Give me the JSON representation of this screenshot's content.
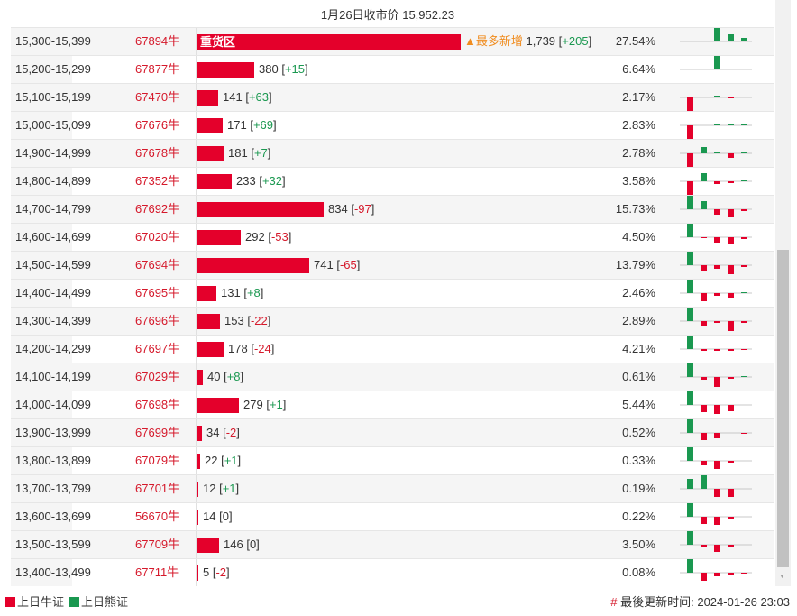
{
  "title": "1月26日收市价 15,952.23",
  "hot_label": "重货区",
  "hot_tag": "▲最多新增",
  "colors": {
    "bull": "#e4002b",
    "bear": "#1a9850",
    "hot": "#f08c1f"
  },
  "max_count": 1739,
  "rows": [
    {
      "range": "15,300-15,399",
      "code": "67894牛",
      "count": "1,739",
      "n": 1739,
      "change": "+205",
      "pct": "27.54%",
      "mini": [
        0,
        0,
        15,
        8,
        4
      ]
    },
    {
      "range": "15,200-15,299",
      "code": "67877牛",
      "count": "380",
      "n": 380,
      "change": "+15",
      "pct": "6.64%",
      "mini": [
        0,
        0,
        15,
        1,
        1
      ]
    },
    {
      "range": "15,100-15,199",
      "code": "67470牛",
      "count": "141",
      "n": 141,
      "change": "+63",
      "pct": "2.17%",
      "mini": [
        -15,
        0,
        2,
        -1,
        1
      ]
    },
    {
      "range": "15,000-15,099",
      "code": "67676牛",
      "count": "171",
      "n": 171,
      "change": "+69",
      "pct": "2.83%",
      "mini": [
        -15,
        0,
        1,
        1,
        1
      ]
    },
    {
      "range": "14,900-14,999",
      "code": "67678牛",
      "count": "181",
      "n": 181,
      "change": "+7",
      "pct": "2.78%",
      "mini": [
        -15,
        7,
        1,
        -5,
        1
      ]
    },
    {
      "range": "14,800-14,899",
      "code": "67352牛",
      "count": "233",
      "n": 233,
      "change": "+32",
      "pct": "3.58%",
      "mini": [
        -15,
        9,
        -3,
        -2,
        1
      ]
    },
    {
      "range": "14,700-14,799",
      "code": "67692牛",
      "count": "834",
      "n": 834,
      "change": "-97",
      "pct": "15.73%",
      "mini": [
        15,
        9,
        -6,
        -9,
        -2
      ]
    },
    {
      "range": "14,600-14,699",
      "code": "67020牛",
      "count": "292",
      "n": 292,
      "change": "-53",
      "pct": "4.50%",
      "mini": [
        15,
        -1,
        -6,
        -7,
        -2
      ]
    },
    {
      "range": "14,500-14,599",
      "code": "67694牛",
      "count": "741",
      "n": 741,
      "change": "-65",
      "pct": "13.79%",
      "mini": [
        15,
        -6,
        -4,
        -10,
        -2
      ]
    },
    {
      "range": "14,400-14,499",
      "code": "67695牛",
      "count": "131",
      "n": 131,
      "change": "+8",
      "pct": "2.46%",
      "mini": [
        15,
        -9,
        -3,
        -5,
        1
      ]
    },
    {
      "range": "14,300-14,399",
      "code": "67696牛",
      "count": "153",
      "n": 153,
      "change": "-22",
      "pct": "2.89%",
      "mini": [
        15,
        -6,
        -2,
        -11,
        -2
      ]
    },
    {
      "range": "14,200-14,299",
      "code": "67697牛",
      "count": "178",
      "n": 178,
      "change": "-24",
      "pct": "4.21%",
      "mini": [
        15,
        -2,
        -2,
        -2,
        -1
      ]
    },
    {
      "range": "14,100-14,199",
      "code": "67029牛",
      "count": "40",
      "n": 40,
      "change": "+8",
      "pct": "0.61%",
      "mini": [
        15,
        -3,
        -11,
        -2,
        1
      ]
    },
    {
      "range": "14,000-14,099",
      "code": "67698牛",
      "count": "279",
      "n": 279,
      "change": "+1",
      "pct": "5.44%",
      "mini": [
        15,
        -8,
        -10,
        -7,
        0
      ]
    },
    {
      "range": "13,900-13,999",
      "code": "67699牛",
      "count": "34",
      "n": 34,
      "change": "-2",
      "pct": "0.52%",
      "mini": [
        15,
        -8,
        -6,
        0,
        -1
      ]
    },
    {
      "range": "13,800-13,899",
      "code": "67079牛",
      "count": "22",
      "n": 22,
      "change": "+1",
      "pct": "0.33%",
      "mini": [
        15,
        -5,
        -9,
        -2,
        0
      ]
    },
    {
      "range": "13,700-13,799",
      "code": "67701牛",
      "count": "12",
      "n": 12,
      "change": "+1",
      "pct": "0.19%",
      "mini": [
        11,
        15,
        -9,
        -9,
        0
      ]
    },
    {
      "range": "13,600-13,699",
      "code": "56670牛",
      "count": "14",
      "n": 14,
      "change": "0",
      "pct": "0.22%",
      "mini": [
        15,
        -8,
        -9,
        -2,
        0
      ]
    },
    {
      "range": "13,500-13,599",
      "code": "67709牛",
      "count": "146",
      "n": 146,
      "change": "0",
      "pct": "3.50%",
      "mini": [
        15,
        -2,
        -8,
        -2,
        0
      ]
    },
    {
      "range": "13,400-13,499",
      "code": "67711牛",
      "count": "5",
      "n": 5,
      "change": "-2",
      "pct": "0.08%",
      "mini": [
        15,
        -9,
        -4,
        -3,
        -1
      ]
    }
  ],
  "legend": {
    "bull": "上日牛证",
    "bear": "上日熊证"
  },
  "updated": {
    "hash": "#",
    "label": "最後更新时间:",
    "value": "2024-01-26 23:03"
  }
}
